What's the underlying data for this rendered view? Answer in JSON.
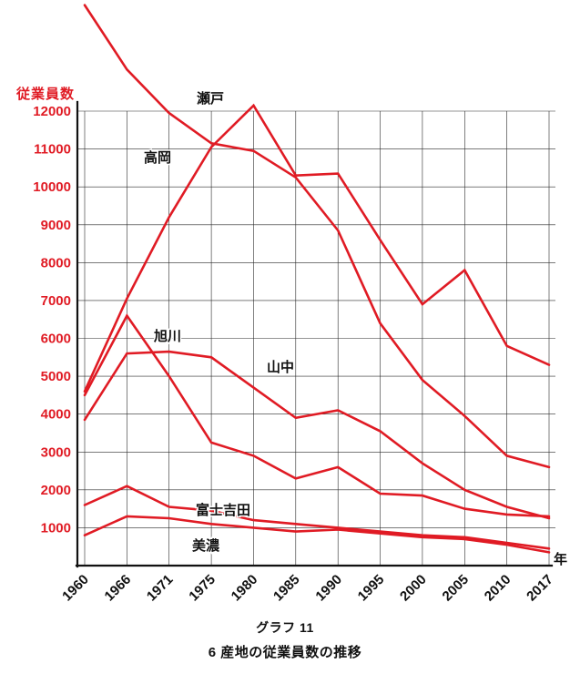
{
  "chart_data": {
    "type": "line",
    "caption": "グラフ 11",
    "title": "6 産地の従業員数の推移",
    "ylabel": "従業員数",
    "xlabel": "年",
    "x": [
      "1960",
      "1966",
      "1971",
      "1975",
      "1980",
      "1985",
      "1990",
      "1995",
      "2000",
      "2005",
      "2010",
      "2017"
    ],
    "ylim": [
      0,
      12000
    ],
    "yticks": [
      1000,
      2000,
      3000,
      4000,
      5000,
      6000,
      7000,
      8000,
      9000,
      10000,
      11000,
      12000
    ],
    "grid": true,
    "legend": "none",
    "line_color": "#e01b24",
    "axis_label_color": "#e01b24",
    "series": [
      {
        "id": "seto",
        "name": "瀬戸",
        "values": [
          4600,
          7050,
          9200,
          11050,
          12150,
          10300,
          10350,
          8600,
          6900,
          7800,
          5800,
          5300
        ]
      },
      {
        "id": "takaoka",
        "name": "高岡",
        "values": [
          14800,
          13100,
          11950,
          11150,
          10950,
          10250,
          8850,
          6400,
          4900,
          3950,
          2900,
          2600
        ]
      },
      {
        "id": "asahikawa",
        "name": "旭川",
        "values": [
          4500,
          6600,
          5000,
          3250,
          2900,
          2300,
          2600,
          1900,
          1850,
          1500,
          1350,
          1300
        ]
      },
      {
        "id": "yamanaka",
        "name": "山中",
        "values": [
          3850,
          5600,
          5650,
          5500,
          4700,
          3900,
          4100,
          3550,
          2700,
          2000,
          1550,
          1250
        ]
      },
      {
        "id": "fujiyoshida",
        "name": "富士吉田",
        "values": [
          1600,
          2100,
          1550,
          1450,
          1200,
          1100,
          1000,
          900,
          800,
          750,
          600,
          450
        ]
      },
      {
        "id": "mino",
        "name": "美濃",
        "values": [
          800,
          1300,
          1250,
          1100,
          1000,
          900,
          950,
          850,
          750,
          700,
          550,
          350
        ]
      }
    ]
  }
}
